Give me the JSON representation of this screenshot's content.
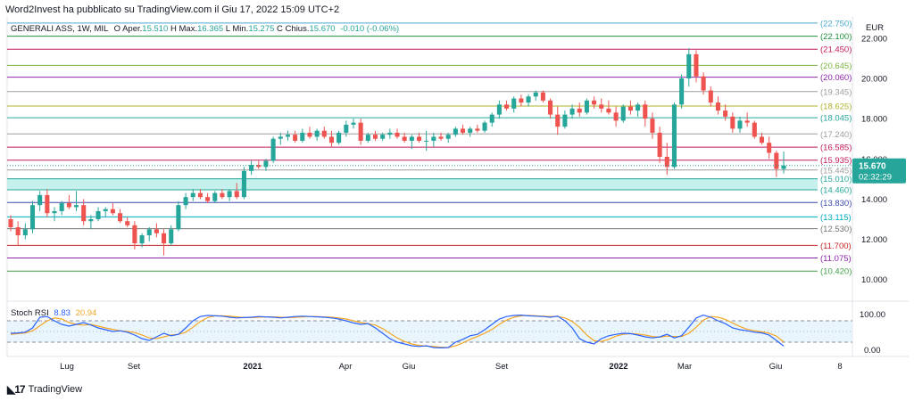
{
  "header": {
    "publisher": "Word2Invest ha pubblicato su TradingView.com il Giu 17, 2022 15:09 UTC+2"
  },
  "ohlc": {
    "symbol": "GENERALI ASS, 1W, MIL",
    "open_label": "O",
    "open_prefix": "Aper.",
    "open": "15.510",
    "high_label": "H",
    "high_prefix": "Max.",
    "high": "16.365",
    "low_label": "L",
    "low_prefix": "Min.",
    "low": "15.275",
    "close_label": "C",
    "close_prefix": "Chius.",
    "close": "15.670",
    "change": "-0.010 (-0.06%)",
    "up_color": "#26a69a",
    "down_color": "#ef5350"
  },
  "rsi": {
    "label": "Stoch RSI",
    "k": "8.83",
    "d": "20.94",
    "k_color": "#2962ff",
    "d_color": "#f5a623",
    "ticks": [
      "100.00",
      "0.00"
    ]
  },
  "price_axis": {
    "unit": "EUR",
    "ticks": [
      "22.000",
      "20.000",
      "18.000",
      "16.000",
      "14.000",
      "12.000",
      "10.000"
    ],
    "current_price": "15.670",
    "countdown": "02:32:29",
    "current_bg": "#26a69a"
  },
  "time_axis": {
    "labels": [
      "Lug",
      "Set",
      "2021",
      "Apr",
      "Giu",
      "Set",
      "2022",
      "Mar",
      "Giu",
      "8"
    ]
  },
  "levels": [
    {
      "label": "22.750",
      "value": 22.75,
      "color": "#4aa8c9"
    },
    {
      "label": "22.100",
      "value": 22.1,
      "color": "#1e8e3e"
    },
    {
      "label": "21.450",
      "value": 21.45,
      "color": "#c2185b"
    },
    {
      "label": "20.645",
      "value": 20.645,
      "color": "#7cb342"
    },
    {
      "label": "20.060",
      "value": 20.06,
      "color": "#8e24aa"
    },
    {
      "label": "19.345",
      "value": 19.345,
      "color": "#9e9e9e"
    },
    {
      "label": "18.625",
      "value": 18.625,
      "color": "#afb42b"
    },
    {
      "label": "18.045",
      "value": 18.045,
      "color": "#26a69a"
    },
    {
      "label": "17.240",
      "value": 17.24,
      "color": "#9e9e9e"
    },
    {
      "label": "16.585",
      "value": 16.585,
      "color": "#c2185b"
    },
    {
      "label": "15.935",
      "value": 15.935,
      "color": "#c2185b"
    },
    {
      "label": "15.445",
      "value": 15.445,
      "color": "#9e9e9e"
    },
    {
      "label": "15.010",
      "value": 15.01,
      "color": "#26a69a"
    },
    {
      "label": "14.460",
      "value": 14.46,
      "color": "#26a69a"
    },
    {
      "label": "13.830",
      "value": 13.83,
      "color": "#3949ab"
    },
    {
      "label": "13.115",
      "value": 13.115,
      "color": "#00acc1"
    },
    {
      "label": "12.530",
      "value": 12.53,
      "color": "#757575"
    },
    {
      "label": "11.700",
      "value": 11.7,
      "color": "#c62828"
    },
    {
      "label": "11.075",
      "value": 11.075,
      "color": "#8e24aa"
    },
    {
      "label": "10.420",
      "value": 10.42,
      "color": "#43a047"
    }
  ],
  "chart_data": {
    "type": "candlestick",
    "ylim": [
      9.5,
      23.1
    ],
    "ohlc": [
      [
        13.0,
        13.2,
        12.4,
        12.6
      ],
      [
        12.6,
        12.9,
        11.7,
        12.2
      ],
      [
        12.2,
        12.8,
        12.0,
        12.5
      ],
      [
        12.5,
        13.9,
        12.3,
        13.7
      ],
      [
        13.7,
        14.4,
        13.4,
        14.2
      ],
      [
        14.2,
        14.5,
        13.1,
        13.3
      ],
      [
        13.3,
        13.6,
        12.9,
        13.4
      ],
      [
        13.4,
        13.9,
        13.2,
        13.8
      ],
      [
        13.8,
        14.2,
        13.5,
        13.6
      ],
      [
        13.6,
        14.4,
        13.4,
        13.7
      ],
      [
        13.7,
        14.0,
        12.7,
        12.9
      ],
      [
        12.9,
        13.2,
        12.5,
        13.0
      ],
      [
        13.0,
        13.6,
        12.9,
        13.4
      ],
      [
        13.4,
        13.6,
        13.1,
        13.5
      ],
      [
        13.5,
        13.8,
        13.2,
        13.3
      ],
      [
        13.3,
        13.5,
        12.8,
        12.9
      ],
      [
        12.9,
        13.1,
        12.6,
        12.7
      ],
      [
        12.7,
        12.9,
        11.5,
        11.8
      ],
      [
        11.8,
        12.3,
        11.6,
        12.2
      ],
      [
        12.2,
        12.6,
        11.9,
        12.5
      ],
      [
        12.5,
        12.8,
        12.1,
        12.3
      ],
      [
        12.3,
        12.5,
        11.2,
        11.8
      ],
      [
        11.8,
        12.7,
        11.7,
        12.5
      ],
      [
        12.5,
        13.9,
        12.4,
        13.7
      ],
      [
        13.7,
        14.3,
        13.5,
        14.1
      ],
      [
        14.1,
        14.5,
        13.9,
        14.3
      ],
      [
        14.3,
        14.5,
        14.0,
        14.1
      ],
      [
        14.1,
        14.3,
        13.8,
        13.9
      ],
      [
        13.9,
        14.4,
        13.8,
        14.3
      ],
      [
        14.3,
        14.5,
        14.0,
        14.1
      ],
      [
        14.1,
        14.5,
        13.9,
        14.4
      ],
      [
        14.4,
        14.8,
        14.0,
        14.1
      ],
      [
        14.1,
        15.6,
        14.0,
        15.4
      ],
      [
        15.4,
        15.9,
        15.2,
        15.7
      ],
      [
        15.7,
        15.9,
        15.5,
        15.6
      ],
      [
        15.6,
        16.0,
        15.4,
        15.9
      ],
      [
        15.9,
        17.1,
        15.8,
        17.0
      ],
      [
        17.0,
        17.3,
        16.7,
        17.1
      ],
      [
        17.1,
        17.4,
        16.9,
        17.2
      ],
      [
        17.2,
        17.4,
        16.8,
        16.9
      ],
      [
        16.9,
        17.5,
        16.8,
        17.3
      ],
      [
        17.3,
        17.6,
        17.0,
        17.1
      ],
      [
        17.1,
        17.5,
        16.9,
        17.4
      ],
      [
        17.4,
        17.6,
        17.0,
        17.1
      ],
      [
        17.1,
        17.4,
        16.6,
        16.8
      ],
      [
        16.8,
        17.4,
        16.7,
        17.3
      ],
      [
        17.3,
        17.9,
        17.1,
        17.7
      ],
      [
        17.7,
        18.0,
        17.5,
        17.8
      ],
      [
        17.8,
        18.0,
        16.7,
        16.9
      ],
      [
        16.9,
        17.3,
        16.8,
        17.2
      ],
      [
        17.2,
        17.4,
        16.9,
        17.0
      ],
      [
        17.0,
        17.3,
        16.9,
        17.2
      ],
      [
        17.2,
        17.5,
        17.0,
        17.3
      ],
      [
        17.3,
        17.5,
        17.0,
        17.1
      ],
      [
        17.1,
        17.3,
        16.8,
        16.9
      ],
      [
        16.9,
        17.2,
        16.5,
        17.1
      ],
      [
        17.1,
        17.3,
        16.8,
        16.9
      ],
      [
        16.9,
        17.4,
        16.4,
        16.9
      ],
      [
        16.9,
        17.3,
        16.6,
        17.1
      ],
      [
        17.1,
        17.3,
        16.9,
        17.0
      ],
      [
        17.0,
        17.3,
        16.8,
        17.2
      ],
      [
        17.2,
        17.6,
        17.1,
        17.5
      ],
      [
        17.5,
        17.7,
        17.2,
        17.3
      ],
      [
        17.3,
        17.6,
        17.1,
        17.5
      ],
      [
        17.5,
        17.7,
        17.3,
        17.4
      ],
      [
        17.4,
        17.9,
        17.3,
        17.8
      ],
      [
        17.8,
        18.3,
        17.6,
        18.2
      ],
      [
        18.2,
        18.9,
        18.0,
        18.7
      ],
      [
        18.7,
        18.9,
        18.4,
        18.5
      ],
      [
        18.5,
        19.1,
        18.3,
        19.0
      ],
      [
        19.0,
        19.2,
        18.6,
        18.8
      ],
      [
        18.8,
        19.2,
        18.6,
        19.1
      ],
      [
        19.1,
        19.4,
        18.9,
        19.3
      ],
      [
        19.3,
        19.4,
        18.8,
        18.9
      ],
      [
        18.9,
        19.0,
        18.0,
        18.2
      ],
      [
        18.2,
        18.6,
        17.2,
        17.6
      ],
      [
        17.6,
        18.4,
        17.5,
        18.2
      ],
      [
        18.2,
        18.7,
        18.0,
        18.5
      ],
      [
        18.5,
        18.8,
        18.1,
        18.3
      ],
      [
        18.3,
        19.0,
        18.2,
        18.9
      ],
      [
        18.9,
        19.1,
        18.5,
        18.7
      ],
      [
        18.7,
        19.0,
        18.3,
        18.5
      ],
      [
        18.5,
        18.9,
        18.2,
        18.3
      ],
      [
        18.3,
        18.6,
        17.6,
        17.9
      ],
      [
        17.9,
        18.7,
        17.8,
        18.6
      ],
      [
        18.6,
        18.9,
        18.2,
        18.4
      ],
      [
        18.4,
        18.8,
        18.1,
        18.7
      ],
      [
        18.7,
        18.9,
        17.6,
        18.0
      ],
      [
        18.0,
        18.3,
        17.0,
        17.3
      ],
      [
        17.3,
        17.6,
        15.8,
        16.1
      ],
      [
        16.1,
        16.8,
        15.2,
        15.6
      ],
      [
        15.6,
        18.8,
        15.5,
        18.7
      ],
      [
        18.7,
        20.2,
        18.5,
        20.0
      ],
      [
        20.0,
        21.5,
        19.6,
        21.2
      ],
      [
        21.2,
        21.4,
        19.8,
        20.1
      ],
      [
        20.1,
        20.3,
        19.2,
        19.4
      ],
      [
        19.4,
        19.6,
        18.6,
        18.8
      ],
      [
        18.8,
        19.1,
        18.2,
        18.4
      ],
      [
        18.4,
        18.7,
        17.9,
        18.1
      ],
      [
        18.1,
        18.3,
        17.3,
        17.5
      ],
      [
        17.5,
        18.1,
        17.3,
        17.9
      ],
      [
        17.9,
        18.3,
        17.6,
        17.8
      ],
      [
        17.8,
        17.9,
        17.0,
        17.1
      ],
      [
        17.1,
        17.3,
        16.7,
        16.8
      ],
      [
        16.8,
        17.1,
        16.0,
        16.3
      ],
      [
        16.3,
        16.4,
        15.1,
        15.5
      ],
      [
        15.5,
        16.36,
        15.27,
        15.67
      ]
    ],
    "stoch_k": [
      45,
      46,
      48,
      60,
      90,
      92,
      80,
      70,
      65,
      70,
      75,
      68,
      60,
      55,
      50,
      52,
      48,
      40,
      30,
      25,
      35,
      45,
      38,
      42,
      60,
      80,
      92,
      95,
      94,
      93,
      90,
      88,
      89,
      90,
      92,
      91,
      90,
      88,
      90,
      92,
      93,
      92,
      91,
      90,
      88,
      85,
      80,
      74,
      70,
      72,
      60,
      45,
      30,
      20,
      15,
      10,
      8,
      10,
      5,
      4,
      5,
      20,
      28,
      38,
      42,
      55,
      70,
      85,
      92,
      95,
      96,
      94,
      93,
      92,
      90,
      93,
      80,
      60,
      30,
      20,
      15,
      30,
      38,
      42,
      45,
      44,
      40,
      35,
      32,
      35,
      42,
      32,
      38,
      62,
      88,
      96,
      90,
      80,
      72,
      60,
      55,
      52,
      48,
      46,
      40,
      25,
      9
    ],
    "stoch_d": [
      42,
      44,
      46,
      52,
      66,
      80,
      88,
      85,
      75,
      70,
      68,
      70,
      65,
      60,
      56,
      52,
      50,
      47,
      40,
      32,
      30,
      35,
      40,
      42,
      48,
      62,
      78,
      89,
      94,
      94,
      93,
      91,
      89,
      89,
      90,
      91,
      91,
      90,
      89,
      90,
      91,
      92,
      92,
      91,
      90,
      88,
      85,
      80,
      75,
      72,
      68,
      58,
      45,
      32,
      22,
      15,
      11,
      9,
      8,
      6,
      5,
      10,
      18,
      28,
      36,
      45,
      56,
      70,
      82,
      90,
      94,
      95,
      94,
      93,
      92,
      92,
      88,
      78,
      62,
      40,
      24,
      22,
      28,
      37,
      42,
      44,
      43,
      40,
      36,
      34,
      37,
      36,
      36,
      45,
      62,
      82,
      92,
      90,
      84,
      74,
      64,
      56,
      52,
      49,
      45,
      37,
      21
    ]
  }
}
